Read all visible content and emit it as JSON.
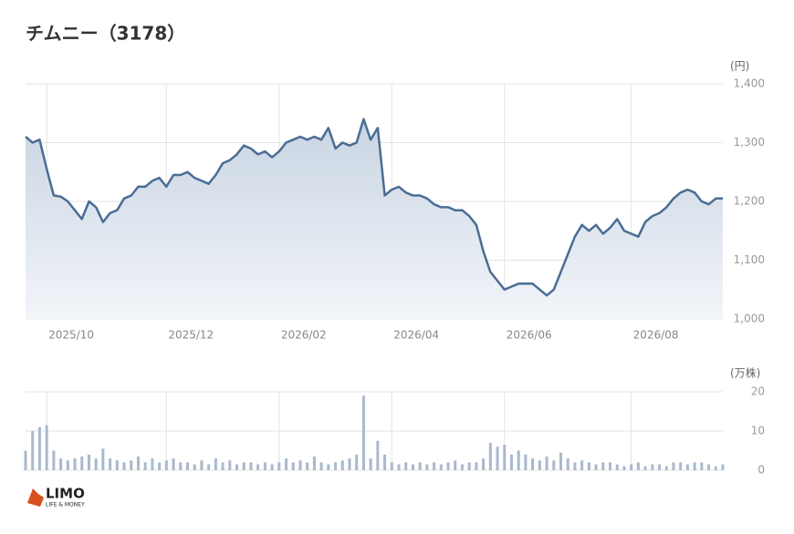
{
  "chart_data": [
    {
      "type": "line",
      "title": "チムニー（3178）",
      "y_unit": "(円)",
      "color": "#4a6d94",
      "fill": "#dfe6ef",
      "categories": [
        null,
        null,
        null,
        "2025/10",
        null,
        null,
        null,
        null,
        null,
        null,
        null,
        null,
        null,
        null,
        null,
        null,
        null,
        null,
        null,
        null,
        "2025/12",
        null,
        null,
        null,
        null,
        null,
        null,
        null,
        null,
        null,
        null,
        null,
        null,
        null,
        null,
        null,
        "2026/02",
        null,
        null,
        null,
        null,
        null,
        null,
        null,
        null,
        null,
        null,
        null,
        null,
        null,
        null,
        null,
        "2026/04",
        null,
        null,
        null,
        null,
        null,
        null,
        null,
        null,
        null,
        null,
        null,
        null,
        null,
        null,
        null,
        "2026/06",
        null,
        null,
        null,
        null,
        null,
        null,
        null,
        null,
        null,
        null,
        null,
        null,
        null,
        null,
        null,
        null,
        null,
        "2026/08",
        null,
        null,
        null,
        null,
        null,
        null,
        null,
        null,
        null,
        null,
        null,
        null,
        null
      ],
      "values": [
        1310,
        1300,
        1305,
        1255,
        1210,
        1208,
        1200,
        1185,
        1170,
        1200,
        1190,
        1165,
        1180,
        1185,
        1205,
        1210,
        1225,
        1225,
        1235,
        1240,
        1225,
        1245,
        1245,
        1250,
        1240,
        1235,
        1230,
        1245,
        1265,
        1270,
        1280,
        1295,
        1290,
        1280,
        1285,
        1275,
        1285,
        1300,
        1305,
        1310,
        1305,
        1310,
        1305,
        1325,
        1290,
        1300,
        1295,
        1300,
        1340,
        1305,
        1325,
        1210,
        1220,
        1225,
        1215,
        1210,
        1210,
        1205,
        1195,
        1190,
        1190,
        1185,
        1185,
        1175,
        1160,
        1115,
        1080,
        1065,
        1050,
        1055,
        1060,
        1060,
        1060,
        1050,
        1040,
        1050,
        1080,
        1110,
        1140,
        1160,
        1150,
        1160,
        1145,
        1155,
        1170,
        1150,
        1145,
        1140,
        1165,
        1175,
        1180,
        1190,
        1205,
        1215,
        1220,
        1215,
        1200,
        1195,
        1205,
        1205
      ],
      "ylim": [
        1000,
        1400
      ],
      "yticks": [
        {
          "value": 1000,
          "label": "1,000"
        },
        {
          "value": 1100,
          "label": "1,100"
        },
        {
          "value": 1200,
          "label": "1,200"
        },
        {
          "value": 1300,
          "label": "1,300"
        },
        {
          "value": 1400,
          "label": "1,400"
        }
      ],
      "grid": true
    },
    {
      "type": "bar",
      "y_unit": "(万株)",
      "color": "#a9b9cd",
      "values": [
        5,
        10,
        11,
        11.5,
        5,
        3,
        2.5,
        3,
        3.5,
        4,
        3,
        5.5,
        3,
        2.5,
        2,
        2.5,
        3.5,
        2,
        3,
        2,
        2.5,
        3,
        2,
        2,
        1.5,
        2.5,
        1.5,
        3,
        2,
        2.5,
        1.5,
        2,
        2,
        1.5,
        2,
        1.5,
        2,
        3,
        2,
        2.5,
        2,
        3.5,
        2,
        1.5,
        2,
        2.5,
        3,
        4,
        19,
        3,
        7.5,
        4,
        2,
        1.5,
        2,
        1.5,
        2,
        1.5,
        2,
        1.5,
        2,
        2.5,
        1.5,
        2,
        2,
        3,
        7,
        6,
        6.5,
        4,
        5,
        4,
        3,
        2.5,
        3.5,
        2.5,
        4.5,
        3,
        2,
        2.5,
        2,
        1.5,
        2,
        2,
        1.5,
        1,
        1.5,
        2,
        1,
        1.5,
        1.5,
        1,
        2,
        2,
        1.5,
        2,
        2,
        1.5,
        1,
        1.5
      ],
      "ylim": [
        0,
        20
      ],
      "yticks": [
        0,
        10,
        20
      ],
      "grid": true
    }
  ],
  "logo": {
    "name": "LIMO",
    "tagline": "LIFE & MONEY"
  }
}
